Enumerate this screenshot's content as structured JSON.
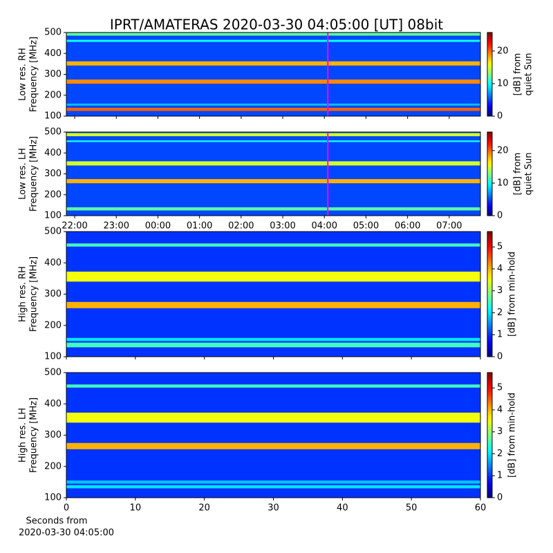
{
  "title": "IPRT/AMATERAS 2020-03-30 04:05:00 [UT]   08bit",
  "chart_data": [
    {
      "type": "heatmap",
      "colormap": "jet",
      "ylabel": [
        "Low res. RH",
        "Frequency [MHz]"
      ],
      "xlim": [
        21.8,
        31.75
      ],
      "xticks": [
        22,
        23,
        24,
        25,
        26,
        27,
        28,
        29,
        30,
        31
      ],
      "ylim": [
        100,
        500
      ],
      "yticks": [
        100,
        200,
        300,
        400,
        500
      ],
      "clim": [
        0,
        25.7
      ],
      "cticks": [
        0,
        10,
        20
      ],
      "clabel": [
        "[dB] from",
        "quiet Sun"
      ],
      "background_level": 5,
      "bands": [
        {
          "freq": [
            485,
            498
          ],
          "level": 12
        },
        {
          "freq": [
            455,
            465
          ],
          "level": 10
        },
        {
          "freq": [
            342,
            362
          ],
          "level": 18
        },
        {
          "freq": [
            255,
            275
          ],
          "level": 19
        },
        {
          "freq": [
            150,
            160
          ],
          "level": 8
        },
        {
          "freq": [
            125,
            140
          ],
          "level": 20
        }
      ],
      "markers": [
        {
          "x": 28.083,
          "color": "#ff00ff"
        }
      ]
    },
    {
      "type": "heatmap",
      "colormap": "jet",
      "ylabel": [
        "Low res. LH",
        "Frequency [MHz]"
      ],
      "xlim": [
        21.8,
        31.75
      ],
      "xticks": [
        {
          "value": 22,
          "label": "22:00"
        },
        {
          "value": 23,
          "label": "23:00"
        },
        {
          "value": 24,
          "label": "00:00"
        },
        {
          "value": 25,
          "label": "01:00"
        },
        {
          "value": 26,
          "label": "02:00"
        },
        {
          "value": 27,
          "label": "03:00"
        },
        {
          "value": 28,
          "label": "04:00"
        },
        {
          "value": 29,
          "label": "05:00"
        },
        {
          "value": 30,
          "label": "06:00"
        },
        {
          "value": 31,
          "label": "07:00"
        }
      ],
      "ylim": [
        100,
        500
      ],
      "yticks": [
        100,
        200,
        300,
        400,
        500
      ],
      "clim": [
        0,
        25.7
      ],
      "cticks": [
        0,
        10,
        20
      ],
      "clabel": [
        "[dB] from",
        "quiet Sun"
      ],
      "background_level": 5,
      "bands": [
        {
          "freq": [
            480,
            495
          ],
          "level": 15
        },
        {
          "freq": [
            452,
            460
          ],
          "level": 10
        },
        {
          "freq": [
            340,
            360
          ],
          "level": 15
        },
        {
          "freq": [
            255,
            275
          ],
          "level": 18
        },
        {
          "freq": [
            125,
            140
          ],
          "level": 12
        }
      ],
      "markers": [
        {
          "x": 28.083,
          "color": "#ff00ff"
        }
      ]
    },
    {
      "type": "heatmap",
      "colormap": "jet",
      "ylabel": [
        "High res. RH",
        "Frequency [MHz]"
      ],
      "xlim": [
        0,
        60
      ],
      "xticks": [
        0,
        10,
        20,
        30,
        40,
        50,
        60
      ],
      "ylim": [
        100,
        500
      ],
      "yticks": [
        100,
        200,
        300,
        400,
        500
      ],
      "clim": [
        0,
        5.7
      ],
      "cticks": [
        0,
        1,
        2,
        3,
        4,
        5
      ],
      "clabel": [
        "[dB] from min-hold"
      ],
      "background_level": 1,
      "bands": [
        {
          "freq": [
            452,
            462
          ],
          "level": 2.5
        },
        {
          "freq": [
            340,
            372
          ],
          "level": 3.5
        },
        {
          "freq": [
            255,
            275
          ],
          "level": 4
        },
        {
          "freq": [
            150,
            160
          ],
          "level": 2
        },
        {
          "freq": [
            130,
            145
          ],
          "level": 2.5
        }
      ]
    },
    {
      "type": "heatmap",
      "colormap": "jet",
      "ylabel": [
        "High res. LH",
        "Frequency [MHz]"
      ],
      "xlim": [
        0,
        60
      ],
      "xticks": [
        0,
        10,
        20,
        30,
        40,
        50,
        60
      ],
      "ylim": [
        100,
        500
      ],
      "yticks": [
        100,
        200,
        300,
        400,
        500
      ],
      "clim": [
        0,
        5.7
      ],
      "cticks": [
        0,
        1,
        2,
        3,
        4,
        5
      ],
      "clabel": [
        "[dB] from min-hold"
      ],
      "xlabel": [
        "Seconds from",
        "2020-03-30 04:05:00"
      ],
      "background_level": 1,
      "bands": [
        {
          "freq": [
            452,
            462
          ],
          "level": 2.5
        },
        {
          "freq": [
            340,
            372
          ],
          "level": 3.5
        },
        {
          "freq": [
            255,
            275
          ],
          "level": 4
        },
        {
          "freq": [
            145,
            155
          ],
          "level": 1.8
        },
        {
          "freq": [
            130,
            140
          ],
          "level": 2
        }
      ]
    }
  ]
}
